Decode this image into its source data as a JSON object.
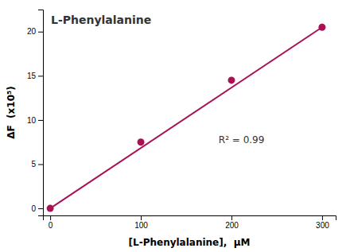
{
  "chart_data": {
    "type": "scatter",
    "title": "L-Phenylalanine",
    "annotations": [
      "R² = 0.99"
    ],
    "xlabel": "[L-Phenylalanine],  μM",
    "ylabel": "ΔF  (x10⁵)",
    "series": [
      {
        "type": "scatter",
        "color": "#AA1155",
        "x": [
          0,
          100,
          200,
          300
        ],
        "values": [
          0,
          7.5,
          14.5,
          20.5
        ]
      },
      {
        "type": "line",
        "color": "#AA1155",
        "x": [
          0,
          300
        ],
        "values": [
          0,
          20.5
        ]
      }
    ],
    "xlim": [
      -8,
      315
    ],
    "ylim": [
      -0.8,
      22.5
    ],
    "xticks": [
      0,
      100,
      200,
      300
    ],
    "yticks": [
      0,
      5,
      10,
      15,
      20
    ],
    "grid": false
  }
}
